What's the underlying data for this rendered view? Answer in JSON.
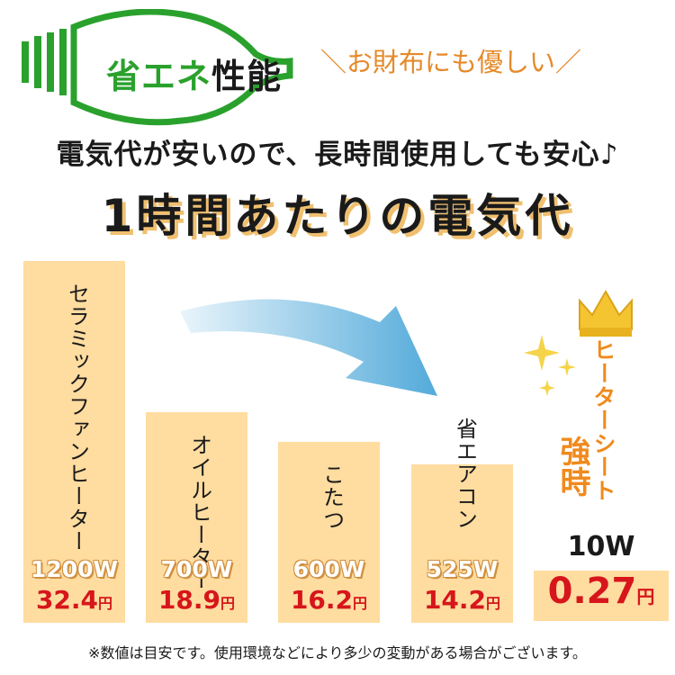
{
  "header": {
    "logo_text": "省エネ",
    "logo_text_2": "性能",
    "tagline": "＼お財布にも優しい／",
    "subheading": "電気代が安いので、長時間使用しても安心♪",
    "title": "1時間あたりの電気代"
  },
  "colors": {
    "bar": "#ffdca0",
    "price": "#d6161b",
    "accent_orange": "#f08a1c",
    "logo_green": "#2aa12d"
  },
  "chart_data": {
    "type": "bar",
    "title": "1時間あたりの電気代",
    "unit": "円",
    "categories": [
      "セラミックファンヒーター",
      "オイルヒーター",
      "こたつ",
      "省エアコン",
      "ヒーターシート 強時"
    ],
    "watts": [
      "1200W",
      "700W",
      "600W",
      "525W",
      "10W"
    ],
    "values": [
      32.4,
      18.9,
      16.2,
      14.2,
      0.27
    ],
    "value_labels": [
      "32.4",
      "18.9",
      "16.2",
      "14.2",
      "0.27"
    ]
  },
  "highlight": {
    "label": "ヒーターシート",
    "mode": "強時",
    "watt": "10W",
    "price": "0.27",
    "unit": "円"
  },
  "footnote": "※数値は目安です。使用環境などにより多少の変動がある場合がございます。"
}
